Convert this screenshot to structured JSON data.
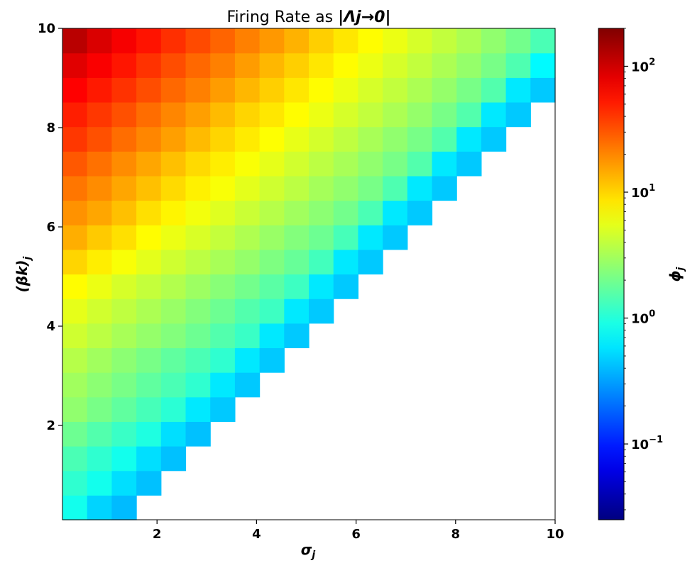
{
  "chart_data": {
    "type": "heatmap",
    "title_prefix": "Firing Rate as ",
    "title_math": "|Λj→0|",
    "xlabel": "σj",
    "ylabel": "(βk)j",
    "colorbar_label": "ϕj",
    "xlim": [
      0.1,
      10
    ],
    "ylim": [
      0.1,
      10
    ],
    "x_ticks": [
      2,
      4,
      6,
      8,
      10
    ],
    "y_ticks": [
      2,
      4,
      6,
      8,
      10
    ],
    "x_tick_labels": [
      "2",
      "4",
      "6",
      "8",
      "10"
    ],
    "y_tick_labels": [
      "2",
      "4",
      "6",
      "8",
      "10"
    ],
    "grid": false,
    "colorscale": "jet",
    "color_scale_type": "log",
    "color_range": [
      0.025,
      200
    ],
    "colorbar_ticks": [
      {
        "value": 0.1,
        "base": "10",
        "exp": "−1"
      },
      {
        "value": 1,
        "base": "10",
        "exp": "0"
      },
      {
        "value": 10,
        "base": "10",
        "exp": "1"
      },
      {
        "value": 100,
        "base": "10",
        "exp": "2"
      }
    ],
    "n_cols": 20,
    "n_rows": 20,
    "cell_note_sigma_centers": "x centers from 0.35 to 9.85 step 0.5",
    "rows": [
      [
        0.85,
        0.5,
        0.4,
        null,
        null,
        null,
        null,
        null,
        null,
        null,
        null,
        null,
        null,
        null,
        null,
        null,
        null,
        null,
        null,
        null
      ],
      [
        1.1,
        0.85,
        0.55,
        0.42,
        null,
        null,
        null,
        null,
        null,
        null,
        null,
        null,
        null,
        null,
        null,
        null,
        null,
        null,
        null,
        null
      ],
      [
        1.4,
        1.1,
        0.85,
        0.55,
        0.42,
        null,
        null,
        null,
        null,
        null,
        null,
        null,
        null,
        null,
        null,
        null,
        null,
        null,
        null,
        null
      ],
      [
        1.9,
        1.5,
        1.2,
        0.95,
        0.55,
        0.42,
        null,
        null,
        null,
        null,
        null,
        null,
        null,
        null,
        null,
        null,
        null,
        null,
        null,
        null
      ],
      [
        2.6,
        2.1,
        1.7,
        1.35,
        1.05,
        0.6,
        0.45,
        null,
        null,
        null,
        null,
        null,
        null,
        null,
        null,
        null,
        null,
        null,
        null,
        null
      ],
      [
        3.0,
        2.5,
        2.1,
        1.7,
        1.4,
        1.1,
        0.6,
        0.45,
        null,
        null,
        null,
        null,
        null,
        null,
        null,
        null,
        null,
        null,
        null,
        null
      ],
      [
        3.6,
        3.0,
        2.5,
        2.1,
        1.7,
        1.4,
        1.1,
        0.6,
        0.45,
        null,
        null,
        null,
        null,
        null,
        null,
        null,
        null,
        null,
        null,
        null
      ],
      [
        4.5,
        3.8,
        3.2,
        2.7,
        2.3,
        1.9,
        1.5,
        1.2,
        0.6,
        0.45,
        null,
        null,
        null,
        null,
        null,
        null,
        null,
        null,
        null,
        null
      ],
      [
        5.5,
        4.6,
        3.9,
        3.3,
        2.8,
        2.3,
        1.9,
        1.5,
        1.25,
        0.6,
        0.45,
        null,
        null,
        null,
        null,
        null,
        null,
        null,
        null,
        null
      ],
      [
        7.0,
        5.8,
        4.8,
        4.1,
        3.5,
        2.9,
        2.4,
        2.0,
        1.6,
        1.25,
        0.6,
        0.45,
        null,
        null,
        null,
        null,
        null,
        null,
        null,
        null
      ],
      [
        10.0,
        8.0,
        6.5,
        5.4,
        4.5,
        3.8,
        3.2,
        2.7,
        2.2,
        1.8,
        1.3,
        0.6,
        0.45,
        null,
        null,
        null,
        null,
        null,
        null,
        null
      ],
      [
        14.0,
        11.0,
        9.0,
        7.0,
        5.8,
        4.9,
        4.1,
        3.4,
        2.8,
        2.3,
        1.9,
        1.35,
        0.6,
        0.45,
        null,
        null,
        null,
        null,
        null,
        null
      ],
      [
        18.0,
        15.0,
        12.0,
        9.0,
        7.5,
        6.2,
        5.2,
        4.3,
        3.6,
        3.0,
        2.5,
        2.0,
        1.4,
        0.6,
        0.45,
        null,
        null,
        null,
        null,
        null
      ],
      [
        23.0,
        19.0,
        15.0,
        12.0,
        9.5,
        7.8,
        6.5,
        5.4,
        4.5,
        3.8,
        3.1,
        2.6,
        2.1,
        1.45,
        0.6,
        0.45,
        null,
        null,
        null,
        null
      ],
      [
        30.0,
        24.0,
        19.0,
        15.0,
        12.0,
        9.5,
        8.0,
        6.6,
        5.5,
        4.6,
        3.8,
        3.2,
        2.6,
        2.1,
        1.5,
        0.6,
        0.45,
        null,
        null,
        null
      ],
      [
        40.0,
        32.0,
        25.0,
        20.0,
        16.0,
        12.5,
        10.0,
        8.2,
        6.8,
        5.6,
        4.7,
        3.9,
        3.2,
        2.6,
        2.1,
        1.5,
        0.6,
        0.45,
        null,
        null
      ],
      [
        50.0,
        40.0,
        32.0,
        25.0,
        20.0,
        16.0,
        12.5,
        10.0,
        8.5,
        7.0,
        5.8,
        4.8,
        4.0,
        3.3,
        2.7,
        2.1,
        1.5,
        0.6,
        0.45,
        null
      ],
      [
        65.0,
        52.0,
        42.0,
        33.0,
        26.0,
        21.0,
        16.5,
        13.0,
        10.5,
        8.5,
        7.0,
        5.8,
        4.8,
        4.0,
        3.3,
        2.7,
        2.1,
        1.5,
        0.6,
        0.45
      ],
      [
        85.0,
        68.0,
        54.0,
        42.0,
        33.0,
        26.0,
        21.0,
        16.5,
        13.0,
        10.5,
        8.5,
        7.0,
        5.8,
        4.8,
        4.0,
        3.3,
        2.7,
        2.1,
        1.45,
        0.7
      ],
      [
        120.0,
        90.0,
        70.0,
        55.0,
        43.0,
        34.0,
        27.0,
        21.0,
        17.0,
        13.5,
        10.5,
        8.5,
        7.0,
        5.8,
        4.8,
        4.0,
        3.3,
        2.6,
        2.0,
        1.4
      ]
    ]
  }
}
